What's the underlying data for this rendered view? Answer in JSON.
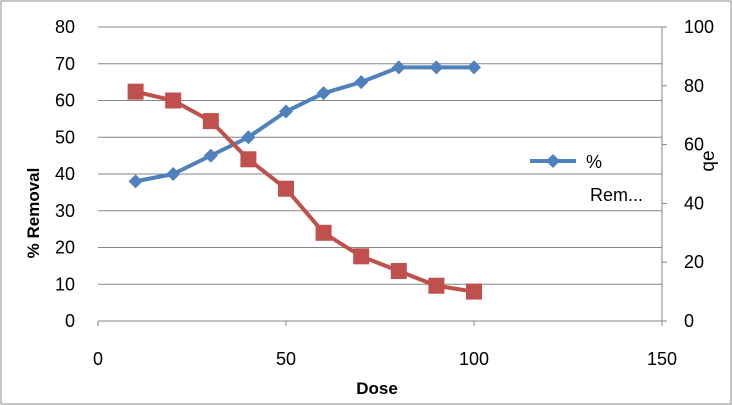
{
  "chart_data": {
    "type": "scatter",
    "xlabel": "Dose",
    "ylabel": "% Removal",
    "y2label": "qe",
    "xlim": [
      0,
      150
    ],
    "ylim": [
      0,
      80
    ],
    "y2lim": [
      0,
      100
    ],
    "xticks": [
      "0",
      "50",
      "100",
      "150"
    ],
    "yticks": [
      "0",
      "10",
      "20",
      "30",
      "40",
      "50",
      "60",
      "70",
      "80"
    ],
    "y2ticks": [
      "0",
      "20",
      "40",
      "60",
      "80",
      "100"
    ],
    "grid": true,
    "legend_position": "right",
    "series": [
      {
        "name": "% Rem...",
        "legend_lines": [
          "%",
          "Rem..."
        ],
        "axis": "left",
        "marker": "diamond",
        "color": "#4F81BD",
        "x": [
          10,
          20,
          30,
          40,
          50,
          60,
          70,
          80,
          90,
          100
        ],
        "y": [
          38,
          40,
          45,
          50,
          57,
          62,
          65,
          69,
          69,
          69
        ]
      },
      {
        "axis": "right",
        "marker": "square",
        "color": "#C0504D",
        "x": [
          10,
          20,
          30,
          40,
          50,
          60,
          70,
          80,
          90,
          100
        ],
        "y": [
          78,
          75,
          68,
          55,
          45,
          30,
          22,
          17,
          12,
          10
        ]
      }
    ]
  }
}
